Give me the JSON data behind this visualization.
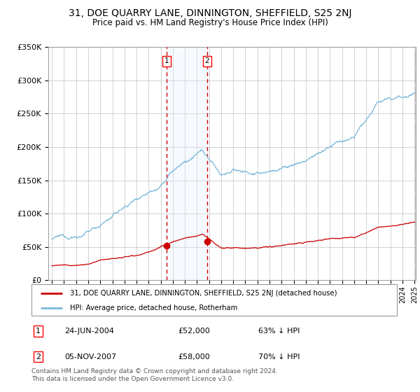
{
  "title": "31, DOE QUARRY LANE, DINNINGTON, SHEFFIELD, S25 2NJ",
  "subtitle": "Price paid vs. HM Land Registry's House Price Index (HPI)",
  "ylim": [
    0,
    350000
  ],
  "yticks": [
    0,
    50000,
    100000,
    150000,
    200000,
    250000,
    300000,
    350000
  ],
  "ytick_labels": [
    "£0",
    "£50K",
    "£100K",
    "£150K",
    "£200K",
    "£250K",
    "£300K",
    "£350K"
  ],
  "x_start_year": 1995,
  "x_end_year": 2025,
  "sale1_date": 2004.48,
  "sale1_price": 52000,
  "sale1_label": "1",
  "sale2_date": 2007.84,
  "sale2_price": 58000,
  "sale2_label": "2",
  "hpi_color": "#7ab8d9",
  "price_color": "#cc0000",
  "shade_color": "#ddeeff",
  "legend_entry1": "31, DOE QUARRY LANE, DINNINGTON, SHEFFIELD, S25 2NJ (detached house)",
  "legend_entry2": "HPI: Average price, detached house, Rotherham",
  "table_row1": [
    "1",
    "24-JUN-2004",
    "£52,000",
    "63% ↓ HPI"
  ],
  "table_row2": [
    "2",
    "05-NOV-2007",
    "£58,000",
    "70% ↓ HPI"
  ],
  "footer": "Contains HM Land Registry data © Crown copyright and database right 2024.\nThis data is licensed under the Open Government Licence v3.0.",
  "background_color": "#ffffff",
  "grid_color": "#cccccc",
  "hpi_key_years": [
    1995,
    1996,
    1997,
    1998,
    1999,
    2000,
    2001,
    2002,
    2003,
    2004,
    2005,
    2006,
    2007,
    2007.5,
    2008,
    2009,
    2010,
    2011,
    2012,
    2013,
    2014,
    2015,
    2016,
    2017,
    2018,
    2019,
    2020,
    2021,
    2022,
    2023,
    2024,
    2025
  ],
  "hpi_key_vals": [
    62000,
    63000,
    66000,
    72000,
    84000,
    97000,
    110000,
    124000,
    138000,
    152000,
    172000,
    184000,
    193000,
    196000,
    185000,
    163000,
    170000,
    168000,
    163000,
    167000,
    172000,
    178000,
    185000,
    195000,
    205000,
    210000,
    214000,
    240000,
    268000,
    270000,
    275000,
    283000
  ],
  "price_key_years": [
    1995,
    1996,
    1997,
    1998,
    1999,
    2000,
    2001,
    2002,
    2003,
    2004,
    2005,
    2006,
    2007,
    2007.5,
    2008,
    2009,
    2010,
    2011,
    2012,
    2013,
    2014,
    2015,
    2016,
    2017,
    2018,
    2019,
    2020,
    2021,
    2022,
    2023,
    2024,
    2025
  ],
  "price_key_vals": [
    22000,
    22500,
    24000,
    26000,
    30000,
    35000,
    39000,
    43000,
    47000,
    52000,
    60000,
    66000,
    70000,
    72000,
    65000,
    51000,
    52000,
    51000,
    50000,
    51000,
    52000,
    54000,
    56000,
    59000,
    62000,
    63000,
    63000,
    70000,
    77000,
    78000,
    80000,
    84000
  ]
}
